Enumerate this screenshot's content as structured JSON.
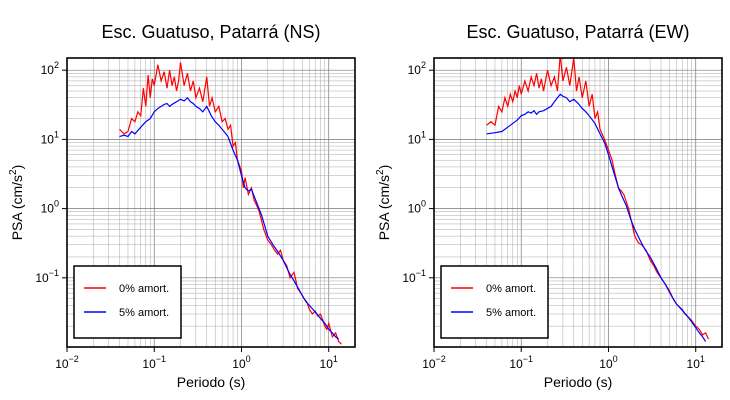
{
  "chart_data": [
    {
      "type": "line",
      "title": "Esc. Guatuso, Patarrá (NS)",
      "xlabel": "Periodo (s)",
      "ylabel_main": "PSA (cm/s",
      "ylabel_sup": "2",
      "ylabel_tail": ")",
      "x_scale": "log",
      "y_scale": "log",
      "xlim": [
        0.01,
        20
      ],
      "ylim": [
        0.01,
        150
      ],
      "x_ticks": [
        {
          "value": 0.01,
          "base": "10",
          "exp": "−2"
        },
        {
          "value": 0.1,
          "base": "10",
          "exp": "−1"
        },
        {
          "value": 1,
          "base": "10",
          "exp": "0"
        },
        {
          "value": 10,
          "base": "10",
          "exp": "1"
        }
      ],
      "y_ticks": [
        {
          "value": 0.1,
          "base": "10",
          "exp": "−1"
        },
        {
          "value": 1,
          "base": "10",
          "exp": "0"
        },
        {
          "value": 10,
          "base": "10",
          "exp": "1"
        },
        {
          "value": 100,
          "base": "10",
          "exp": "2"
        }
      ],
      "grid": true,
      "legend_position": "bottom-left",
      "series": [
        {
          "name": "0% amort.",
          "color": "#ff0000",
          "points": [
            [
              0.04,
              14
            ],
            [
              0.045,
              12
            ],
            [
              0.05,
              13
            ],
            [
              0.055,
              20
            ],
            [
              0.06,
              18
            ],
            [
              0.065,
              25
            ],
            [
              0.07,
              22
            ],
            [
              0.075,
              55
            ],
            [
              0.08,
              30
            ],
            [
              0.085,
              85
            ],
            [
              0.09,
              40
            ],
            [
              0.095,
              75
            ],
            [
              0.1,
              60
            ],
            [
              0.11,
              120
            ],
            [
              0.12,
              70
            ],
            [
              0.13,
              95
            ],
            [
              0.14,
              55
            ],
            [
              0.15,
              100
            ],
            [
              0.16,
              60
            ],
            [
              0.17,
              80
            ],
            [
              0.18,
              50
            ],
            [
              0.19,
              70
            ],
            [
              0.2,
              130
            ],
            [
              0.22,
              60
            ],
            [
              0.24,
              90
            ],
            [
              0.26,
              50
            ],
            [
              0.28,
              70
            ],
            [
              0.3,
              40
            ],
            [
              0.33,
              55
            ],
            [
              0.36,
              35
            ],
            [
              0.4,
              80
            ],
            [
              0.43,
              30
            ],
            [
              0.46,
              40
            ],
            [
              0.5,
              25
            ],
            [
              0.55,
              30
            ],
            [
              0.6,
              18
            ],
            [
              0.65,
              20
            ],
            [
              0.7,
              14
            ],
            [
              0.75,
              16
            ],
            [
              0.8,
              8
            ],
            [
              0.85,
              9
            ],
            [
              0.9,
              5
            ],
            [
              1.0,
              3.5
            ],
            [
              1.05,
              2
            ],
            [
              1.1,
              2.8
            ],
            [
              1.2,
              1.6
            ],
            [
              1.3,
              2
            ],
            [
              1.4,
              1.3
            ],
            [
              1.5,
              1.1
            ],
            [
              1.6,
              0.9
            ],
            [
              1.8,
              0.5
            ],
            [
              2.0,
              0.35
            ],
            [
              2.2,
              0.3
            ],
            [
              2.4,
              0.25
            ],
            [
              2.6,
              0.22
            ],
            [
              2.8,
              0.25
            ],
            [
              3.0,
              0.18
            ],
            [
              3.3,
              0.15
            ],
            [
              3.6,
              0.1
            ],
            [
              4.0,
              0.12
            ],
            [
              4.4,
              0.07
            ],
            [
              4.8,
              0.06
            ],
            [
              5.2,
              0.05
            ],
            [
              5.6,
              0.045
            ],
            [
              6.0,
              0.035
            ],
            [
              6.5,
              0.03
            ],
            [
              7.0,
              0.033
            ],
            [
              7.5,
              0.028
            ],
            [
              8.0,
              0.03
            ],
            [
              8.5,
              0.025
            ],
            [
              9.0,
              0.02
            ],
            [
              9.5,
              0.018
            ],
            [
              10.0,
              0.022
            ],
            [
              11.0,
              0.014
            ],
            [
              12.0,
              0.016
            ],
            [
              13.0,
              0.012
            ],
            [
              14.0,
              0.011
            ]
          ]
        },
        {
          "name": "5% amort.",
          "color": "#0000ff",
          "points": [
            [
              0.04,
              11
            ],
            [
              0.045,
              11.5
            ],
            [
              0.05,
              11
            ],
            [
              0.055,
              13
            ],
            [
              0.06,
              12
            ],
            [
              0.07,
              15
            ],
            [
              0.08,
              18
            ],
            [
              0.09,
              20
            ],
            [
              0.1,
              25
            ],
            [
              0.11,
              28
            ],
            [
              0.12,
              30
            ],
            [
              0.13,
              32
            ],
            [
              0.14,
              33
            ],
            [
              0.15,
              30
            ],
            [
              0.16,
              32
            ],
            [
              0.18,
              35
            ],
            [
              0.2,
              38
            ],
            [
              0.22,
              36
            ],
            [
              0.24,
              40
            ],
            [
              0.26,
              35
            ],
            [
              0.28,
              33
            ],
            [
              0.3,
              30
            ],
            [
              0.33,
              28
            ],
            [
              0.36,
              25
            ],
            [
              0.4,
              30
            ],
            [
              0.45,
              22
            ],
            [
              0.5,
              18
            ],
            [
              0.55,
              16
            ],
            [
              0.6,
              14
            ],
            [
              0.7,
              11
            ],
            [
              0.8,
              7
            ],
            [
              0.9,
              5
            ],
            [
              1.0,
              3
            ],
            [
              1.1,
              2
            ],
            [
              1.2,
              1.8
            ],
            [
              1.3,
              1.9
            ],
            [
              1.4,
              1.5
            ],
            [
              1.5,
              1.2
            ],
            [
              1.7,
              0.8
            ],
            [
              2.0,
              0.4
            ],
            [
              2.3,
              0.3
            ],
            [
              2.6,
              0.24
            ],
            [
              3.0,
              0.18
            ],
            [
              3.5,
              0.12
            ],
            [
              4.0,
              0.09
            ],
            [
              4.5,
              0.07
            ],
            [
              5.0,
              0.055
            ],
            [
              5.5,
              0.045
            ],
            [
              6.0,
              0.04
            ],
            [
              7.0,
              0.032
            ],
            [
              8.0,
              0.026
            ],
            [
              9.0,
              0.022
            ],
            [
              10.0,
              0.018
            ],
            [
              11.0,
              0.016
            ],
            [
              12.0,
              0.014
            ],
            [
              13.0,
              0.013
            ]
          ]
        }
      ]
    },
    {
      "type": "line",
      "title": "Esc. Guatuso, Patarrá (EW)",
      "xlabel": "Periodo (s)",
      "ylabel_main": "PSA (cm/s",
      "ylabel_sup": "2",
      "ylabel_tail": ")",
      "x_scale": "log",
      "y_scale": "log",
      "xlim": [
        0.01,
        20
      ],
      "ylim": [
        0.01,
        150
      ],
      "x_ticks": [
        {
          "value": 0.01,
          "base": "10",
          "exp": "−2"
        },
        {
          "value": 0.1,
          "base": "10",
          "exp": "−1"
        },
        {
          "value": 1,
          "base": "10",
          "exp": "0"
        },
        {
          "value": 10,
          "base": "10",
          "exp": "1"
        }
      ],
      "y_ticks": [
        {
          "value": 0.1,
          "base": "10",
          "exp": "−1"
        },
        {
          "value": 1,
          "base": "10",
          "exp": "0"
        },
        {
          "value": 10,
          "base": "10",
          "exp": "1"
        },
        {
          "value": 100,
          "base": "10",
          "exp": "2"
        }
      ],
      "grid": true,
      "legend_position": "bottom-left",
      "series": [
        {
          "name": "0% amort.",
          "color": "#ff0000",
          "points": [
            [
              0.04,
              16
            ],
            [
              0.045,
              18
            ],
            [
              0.05,
              16
            ],
            [
              0.055,
              30
            ],
            [
              0.06,
              25
            ],
            [
              0.065,
              40
            ],
            [
              0.07,
              30
            ],
            [
              0.075,
              45
            ],
            [
              0.08,
              35
            ],
            [
              0.085,
              50
            ],
            [
              0.09,
              40
            ],
            [
              0.095,
              60
            ],
            [
              0.1,
              45
            ],
            [
              0.11,
              70
            ],
            [
              0.12,
              50
            ],
            [
              0.13,
              80
            ],
            [
              0.14,
              60
            ],
            [
              0.15,
              90
            ],
            [
              0.16,
              55
            ],
            [
              0.17,
              75
            ],
            [
              0.18,
              50
            ],
            [
              0.2,
              100
            ],
            [
              0.22,
              60
            ],
            [
              0.24,
              80
            ],
            [
              0.26,
              50
            ],
            [
              0.28,
              170
            ],
            [
              0.3,
              70
            ],
            [
              0.33,
              110
            ],
            [
              0.36,
              60
            ],
            [
              0.4,
              150
            ],
            [
              0.43,
              50
            ],
            [
              0.46,
              80
            ],
            [
              0.5,
              40
            ],
            [
              0.55,
              70
            ],
            [
              0.6,
              30
            ],
            [
              0.65,
              45
            ],
            [
              0.7,
              20
            ],
            [
              0.75,
              25
            ],
            [
              0.8,
              14
            ],
            [
              0.9,
              10
            ],
            [
              1.0,
              7
            ],
            [
              1.1,
              5
            ],
            [
              1.2,
              3
            ],
            [
              1.3,
              2
            ],
            [
              1.4,
              1.8
            ],
            [
              1.5,
              1.6
            ],
            [
              1.7,
              1.0
            ],
            [
              2.0,
              0.4
            ],
            [
              2.2,
              0.32
            ],
            [
              2.4,
              0.3
            ],
            [
              2.7,
              0.25
            ],
            [
              3.0,
              0.18
            ],
            [
              3.3,
              0.15
            ],
            [
              3.6,
              0.12
            ],
            [
              4.0,
              0.1
            ],
            [
              4.5,
              0.08
            ],
            [
              5.0,
              0.065
            ],
            [
              5.5,
              0.05
            ],
            [
              6.0,
              0.042
            ],
            [
              6.5,
              0.038
            ],
            [
              7.0,
              0.035
            ],
            [
              7.5,
              0.03
            ],
            [
              8.0,
              0.028
            ],
            [
              9.0,
              0.024
            ],
            [
              10.0,
              0.02
            ],
            [
              11.0,
              0.018
            ],
            [
              12.0,
              0.015
            ],
            [
              13.0,
              0.016
            ],
            [
              14.0,
              0.013
            ]
          ]
        },
        {
          "name": "5% amort.",
          "color": "#0000ff",
          "points": [
            [
              0.04,
              12
            ],
            [
              0.05,
              12.5
            ],
            [
              0.06,
              13
            ],
            [
              0.07,
              15
            ],
            [
              0.08,
              17
            ],
            [
              0.09,
              19
            ],
            [
              0.1,
              22
            ],
            [
              0.11,
              23
            ],
            [
              0.12,
              25
            ],
            [
              0.13,
              24
            ],
            [
              0.14,
              26
            ],
            [
              0.15,
              23
            ],
            [
              0.16,
              25
            ],
            [
              0.18,
              26
            ],
            [
              0.2,
              28
            ],
            [
              0.22,
              30
            ],
            [
              0.24,
              35
            ],
            [
              0.26,
              40
            ],
            [
              0.28,
              45
            ],
            [
              0.3,
              42
            ],
            [
              0.33,
              40
            ],
            [
              0.36,
              35
            ],
            [
              0.4,
              38
            ],
            [
              0.45,
              33
            ],
            [
              0.5,
              28
            ],
            [
              0.55,
              25
            ],
            [
              0.6,
              22
            ],
            [
              0.7,
              17
            ],
            [
              0.8,
              12
            ],
            [
              0.9,
              9
            ],
            [
              1.0,
              6
            ],
            [
              1.1,
              4
            ],
            [
              1.2,
              2.8
            ],
            [
              1.3,
              2
            ],
            [
              1.4,
              1.6
            ],
            [
              1.6,
              1.1
            ],
            [
              1.8,
              0.7
            ],
            [
              2.0,
              0.5
            ],
            [
              2.3,
              0.35
            ],
            [
              2.6,
              0.26
            ],
            [
              3.0,
              0.2
            ],
            [
              3.5,
              0.14
            ],
            [
              4.0,
              0.1
            ],
            [
              4.5,
              0.08
            ],
            [
              5.0,
              0.062
            ],
            [
              5.5,
              0.05
            ],
            [
              6.0,
              0.042
            ],
            [
              7.0,
              0.034
            ],
            [
              8.0,
              0.028
            ],
            [
              9.0,
              0.023
            ],
            [
              10.0,
              0.019
            ],
            [
              11.0,
              0.016
            ],
            [
              12.0,
              0.014
            ],
            [
              13.0,
              0.012
            ]
          ]
        }
      ]
    }
  ]
}
